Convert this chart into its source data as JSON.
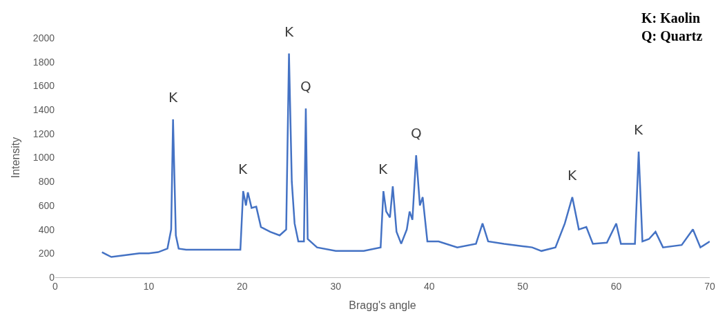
{
  "chart_data": {
    "type": "line",
    "xlabel": "Bragg's angle",
    "ylabel": "Intensity",
    "x": [
      5,
      5.5,
      6,
      7,
      8,
      9,
      10,
      11,
      12,
      12.4,
      12.6,
      12.9,
      13.2,
      14,
      16,
      18,
      19.8,
      20.1,
      20.4,
      20.6,
      21,
      21.5,
      22,
      23,
      24,
      24.7,
      25.0,
      25.3,
      25.6,
      26.0,
      26.6,
      26.8,
      27.0,
      28,
      30,
      33,
      34.8,
      35.1,
      35.4,
      35.8,
      36.1,
      36.5,
      37,
      37.6,
      37.9,
      38.2,
      38.6,
      39.0,
      39.3,
      39.8,
      41,
      43,
      45,
      45.7,
      46.3,
      48,
      50,
      51,
      52,
      53.5,
      54.5,
      55.3,
      56,
      56.8,
      57.5,
      59,
      60,
      60.5,
      62,
      62.4,
      62.8,
      63.5,
      64.2,
      65,
      67,
      68.2,
      69,
      70
    ],
    "series": [
      {
        "color": "#4472c4",
        "values": [
          210,
          190,
          170,
          180,
          190,
          200,
          200,
          210,
          240,
          400,
          1320,
          350,
          240,
          230,
          230,
          230,
          230,
          720,
          600,
          710,
          580,
          590,
          420,
          380,
          350,
          400,
          1870,
          800,
          450,
          300,
          300,
          1410,
          320,
          250,
          220,
          220,
          250,
          720,
          550,
          500,
          760,
          380,
          280,
          400,
          550,
          480,
          1020,
          600,
          670,
          300,
          300,
          250,
          280,
          450,
          300,
          280,
          260,
          250,
          220,
          250,
          450,
          670,
          400,
          420,
          280,
          290,
          450,
          280,
          280,
          1050,
          300,
          320,
          380,
          250,
          270,
          400,
          250,
          300
        ]
      }
    ],
    "xlim": [
      0,
      70
    ],
    "xticks": [
      0,
      10,
      20,
      30,
      40,
      50,
      60,
      70
    ],
    "ylim": [
      0,
      2000
    ],
    "yticks": [
      0,
      200,
      400,
      600,
      800,
      1000,
      1200,
      1400,
      1600,
      1800,
      2000
    ],
    "grid": false,
    "legend": false,
    "marker": "none",
    "line_style": "solid",
    "annotations": [
      {
        "text": "K",
        "x": 12.6,
        "y": 1320
      },
      {
        "text": "K",
        "x": 20.1,
        "y": 720
      },
      {
        "text": "K",
        "x": 25.0,
        "y": 1870
      },
      {
        "text": "Q",
        "x": 26.8,
        "y": 1410
      },
      {
        "text": "K",
        "x": 35.1,
        "y": 720
      },
      {
        "text": "Q",
        "x": 38.6,
        "y": 1020
      },
      {
        "text": "K",
        "x": 55.3,
        "y": 670
      },
      {
        "text": "K",
        "x": 62.4,
        "y": 1050
      },
      "K: Kaolin",
      "Q: Quartz"
    ]
  }
}
